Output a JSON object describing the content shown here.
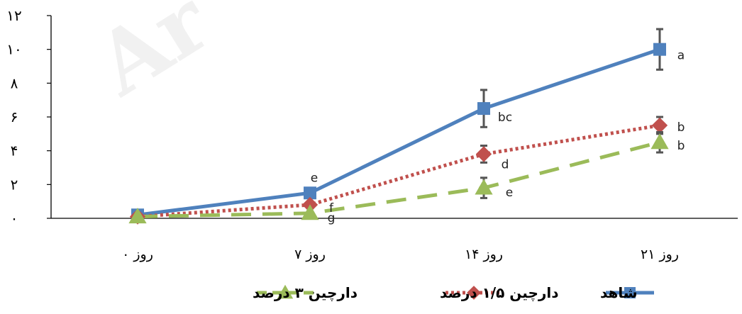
{
  "chart_data": {
    "type": "line",
    "categories": [
      "روز ۰",
      "روز ۷",
      "روز ۱۴",
      "روز ۲۱"
    ],
    "yticks": [
      "۰",
      "۲",
      "۴",
      "۶",
      "۸",
      "۱۰",
      "۱۲"
    ],
    "ylim": [
      0,
      12
    ],
    "grid": false,
    "legend_position": "bottom",
    "series": [
      {
        "name": "شاهد",
        "color": "#4F81BD",
        "marker": "square",
        "dash": "solid",
        "values": [
          0.2,
          1.5,
          6.5,
          10.0
        ],
        "errors": [
          0.1,
          0.3,
          1.1,
          1.2
        ],
        "labels": [
          "",
          "e",
          "bc",
          "a"
        ]
      },
      {
        "name": "دارچین ۱/۵ درصد",
        "color": "#C0504D",
        "marker": "diamond",
        "dash": "dotted",
        "values": [
          0.1,
          0.8,
          3.8,
          5.5
        ],
        "errors": [
          0.1,
          0.2,
          0.5,
          0.5
        ],
        "labels": [
          "",
          "f",
          "d",
          "b"
        ]
      },
      {
        "name": "دارچین ۳ درصد",
        "color": "#9BBB59",
        "marker": "triangle",
        "dash": "dashed",
        "values": [
          0.1,
          0.3,
          1.8,
          4.5
        ],
        "errors": [
          0.05,
          0.1,
          0.6,
          0.6
        ],
        "labels": [
          "",
          "g",
          "e",
          "b"
        ]
      }
    ]
  }
}
